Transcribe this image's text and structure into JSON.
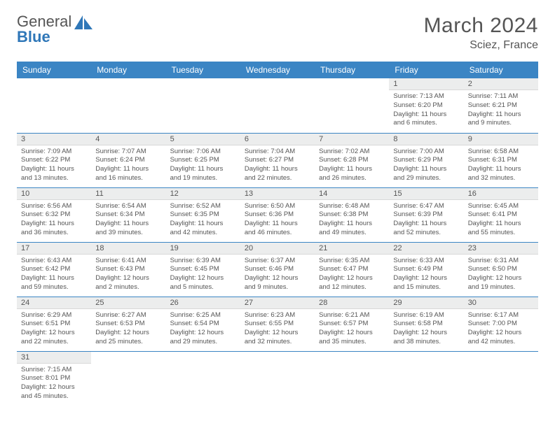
{
  "brand": {
    "general": "General",
    "blue": "Blue"
  },
  "header": {
    "title": "March 2024",
    "location": "Sciez, France"
  },
  "colors": {
    "accent": "#3b85c4",
    "cell_header": "#eceded",
    "text": "#555555"
  },
  "calendar": {
    "days_of_week": [
      "Sunday",
      "Monday",
      "Tuesday",
      "Wednesday",
      "Thursday",
      "Friday",
      "Saturday"
    ],
    "leading_blanks": 5,
    "cells": [
      {
        "n": "1",
        "sr": "7:13 AM",
        "ss": "6:20 PM",
        "dl": "11 hours and 6 minutes."
      },
      {
        "n": "2",
        "sr": "7:11 AM",
        "ss": "6:21 PM",
        "dl": "11 hours and 9 minutes."
      },
      {
        "n": "3",
        "sr": "7:09 AM",
        "ss": "6:22 PM",
        "dl": "11 hours and 13 minutes."
      },
      {
        "n": "4",
        "sr": "7:07 AM",
        "ss": "6:24 PM",
        "dl": "11 hours and 16 minutes."
      },
      {
        "n": "5",
        "sr": "7:06 AM",
        "ss": "6:25 PM",
        "dl": "11 hours and 19 minutes."
      },
      {
        "n": "6",
        "sr": "7:04 AM",
        "ss": "6:27 PM",
        "dl": "11 hours and 22 minutes."
      },
      {
        "n": "7",
        "sr": "7:02 AM",
        "ss": "6:28 PM",
        "dl": "11 hours and 26 minutes."
      },
      {
        "n": "8",
        "sr": "7:00 AM",
        "ss": "6:29 PM",
        "dl": "11 hours and 29 minutes."
      },
      {
        "n": "9",
        "sr": "6:58 AM",
        "ss": "6:31 PM",
        "dl": "11 hours and 32 minutes."
      },
      {
        "n": "10",
        "sr": "6:56 AM",
        "ss": "6:32 PM",
        "dl": "11 hours and 36 minutes."
      },
      {
        "n": "11",
        "sr": "6:54 AM",
        "ss": "6:34 PM",
        "dl": "11 hours and 39 minutes."
      },
      {
        "n": "12",
        "sr": "6:52 AM",
        "ss": "6:35 PM",
        "dl": "11 hours and 42 minutes."
      },
      {
        "n": "13",
        "sr": "6:50 AM",
        "ss": "6:36 PM",
        "dl": "11 hours and 46 minutes."
      },
      {
        "n": "14",
        "sr": "6:48 AM",
        "ss": "6:38 PM",
        "dl": "11 hours and 49 minutes."
      },
      {
        "n": "15",
        "sr": "6:47 AM",
        "ss": "6:39 PM",
        "dl": "11 hours and 52 minutes."
      },
      {
        "n": "16",
        "sr": "6:45 AM",
        "ss": "6:41 PM",
        "dl": "11 hours and 55 minutes."
      },
      {
        "n": "17",
        "sr": "6:43 AM",
        "ss": "6:42 PM",
        "dl": "11 hours and 59 minutes."
      },
      {
        "n": "18",
        "sr": "6:41 AM",
        "ss": "6:43 PM",
        "dl": "12 hours and 2 minutes."
      },
      {
        "n": "19",
        "sr": "6:39 AM",
        "ss": "6:45 PM",
        "dl": "12 hours and 5 minutes."
      },
      {
        "n": "20",
        "sr": "6:37 AM",
        "ss": "6:46 PM",
        "dl": "12 hours and 9 minutes."
      },
      {
        "n": "21",
        "sr": "6:35 AM",
        "ss": "6:47 PM",
        "dl": "12 hours and 12 minutes."
      },
      {
        "n": "22",
        "sr": "6:33 AM",
        "ss": "6:49 PM",
        "dl": "12 hours and 15 minutes."
      },
      {
        "n": "23",
        "sr": "6:31 AM",
        "ss": "6:50 PM",
        "dl": "12 hours and 19 minutes."
      },
      {
        "n": "24",
        "sr": "6:29 AM",
        "ss": "6:51 PM",
        "dl": "12 hours and 22 minutes."
      },
      {
        "n": "25",
        "sr": "6:27 AM",
        "ss": "6:53 PM",
        "dl": "12 hours and 25 minutes."
      },
      {
        "n": "26",
        "sr": "6:25 AM",
        "ss": "6:54 PM",
        "dl": "12 hours and 29 minutes."
      },
      {
        "n": "27",
        "sr": "6:23 AM",
        "ss": "6:55 PM",
        "dl": "12 hours and 32 minutes."
      },
      {
        "n": "28",
        "sr": "6:21 AM",
        "ss": "6:57 PM",
        "dl": "12 hours and 35 minutes."
      },
      {
        "n": "29",
        "sr": "6:19 AM",
        "ss": "6:58 PM",
        "dl": "12 hours and 38 minutes."
      },
      {
        "n": "30",
        "sr": "6:17 AM",
        "ss": "7:00 PM",
        "dl": "12 hours and 42 minutes."
      },
      {
        "n": "31",
        "sr": "7:15 AM",
        "ss": "8:01 PM",
        "dl": "12 hours and 45 minutes."
      }
    ],
    "labels": {
      "sunrise": "Sunrise: ",
      "sunset": "Sunset: ",
      "daylight": "Daylight: "
    }
  }
}
